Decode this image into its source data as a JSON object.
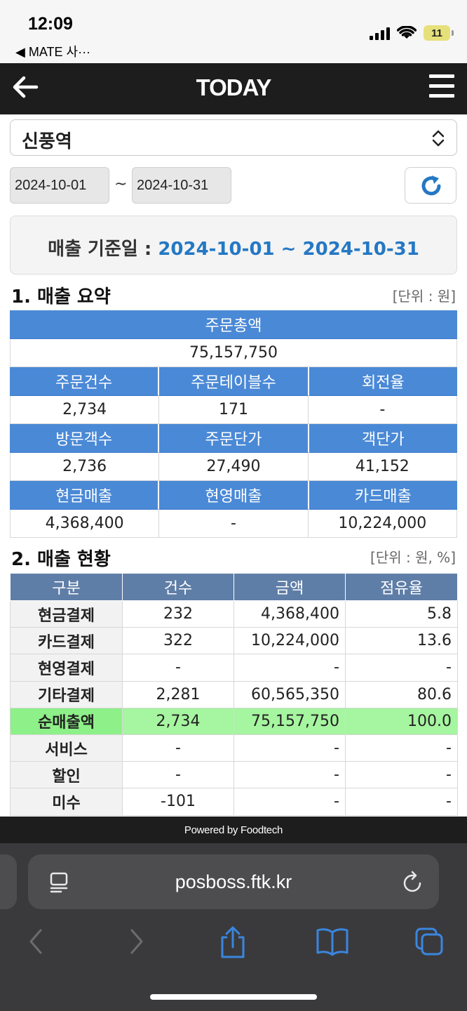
{
  "status_bar": {
    "time": "12:09",
    "back_app": "◀ MATE 사···",
    "battery": "11"
  },
  "header": {
    "title": "TODAY"
  },
  "store_select": {
    "value": "신풍역"
  },
  "date_range": {
    "start": "2024-10-01",
    "separator": "~",
    "end": "2024-10-31"
  },
  "period": {
    "label": "매출 기준일 : ",
    "value": "2024-10-01 ~ 2024-10-31"
  },
  "summary": {
    "title": "1. 매출 요약",
    "unit": "[단위 : 원]",
    "total": {
      "label": "주문총액",
      "value": "75,157,750"
    },
    "rows": [
      {
        "headers": [
          "주문건수",
          "주문테이블수",
          "회전율"
        ],
        "values": [
          "2,734",
          "171",
          "-"
        ]
      },
      {
        "headers": [
          "방문객수",
          "주문단가",
          "객단가"
        ],
        "values": [
          "2,736",
          "27,490",
          "41,152"
        ]
      },
      {
        "headers": [
          "현금매출",
          "현영매출",
          "카드매출"
        ],
        "values": [
          "4,368,400",
          "-",
          "10,224,000"
        ]
      }
    ]
  },
  "status": {
    "title": "2. 매출 현황",
    "unit": "[단위 : 원, %]",
    "columns": [
      "구분",
      "건수",
      "금액",
      "점유율"
    ],
    "rows": [
      {
        "label": "현금결제",
        "count": "232",
        "amount": "4,368,400",
        "share": "5.8"
      },
      {
        "label": "카드결제",
        "count": "322",
        "amount": "10,224,000",
        "share": "13.6"
      },
      {
        "label": "현영결제",
        "count": "-",
        "amount": "-",
        "share": "-"
      },
      {
        "label": "기타결제",
        "count": "2,281",
        "amount": "60,565,350",
        "share": "80.6"
      },
      {
        "label": "순매출액",
        "count": "2,734",
        "amount": "75,157,750",
        "share": "100.0"
      },
      {
        "label": "서비스",
        "count": "-",
        "amount": "-",
        "share": "-"
      },
      {
        "label": "할인",
        "count": "-",
        "amount": "-",
        "share": "-"
      },
      {
        "label": "미수",
        "count": "-101",
        "amount": "-",
        "share": "-"
      }
    ]
  },
  "footer": {
    "powered": "Powered by Foodtech"
  },
  "browser": {
    "url": "posboss.ftk.kr"
  },
  "colors": {
    "header_bg": "#1d1d1d",
    "summary_head": "#4a89d6",
    "status_head": "#5f7ea7",
    "net_row": "#a6f5a0",
    "accent_blue": "#2478c4",
    "safari_bg": "#3a3a3c",
    "safari_icon_blue": "#3a86e0"
  }
}
